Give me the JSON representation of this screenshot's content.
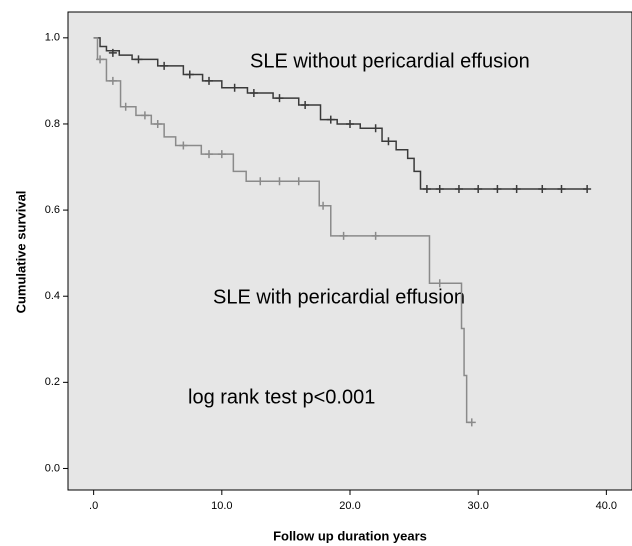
{
  "chart_data": {
    "type": "step",
    "x_label": "Follow up duration years",
    "y_label": "Cumulative survival",
    "annotations": [
      "SLE without pericardial effusion",
      "SLE with pericardial effusion",
      "log rank test p<0.001"
    ],
    "xlim": [
      -2,
      42
    ],
    "ylim": [
      -0.05,
      1.06
    ],
    "xticks": [
      {
        "value": 0,
        "label": ".0"
      },
      {
        "value": 10,
        "label": "10.0"
      },
      {
        "value": 20,
        "label": "20.0"
      },
      {
        "value": 30,
        "label": "30.0"
      },
      {
        "value": 40,
        "label": "40.0"
      }
    ],
    "yticks": [
      {
        "value": 0,
        "label": "0.0"
      },
      0.2,
      0.4,
      0.6,
      0.8,
      {
        "value": 1,
        "label": "1.0"
      }
    ],
    "series": [
      {
        "color": "#3a3a3a",
        "x": [
          0,
          0.5,
          1,
          2,
          3,
          5,
          7,
          8.5,
          10,
          12,
          14,
          16,
          17.7,
          19,
          20.8,
          22.5,
          23.6,
          24.5,
          25,
          25.5,
          38.5
        ],
        "values": [
          1,
          0.98,
          0.97,
          0.96,
          0.95,
          0.935,
          0.915,
          0.9,
          0.884,
          0.872,
          0.86,
          0.844,
          0.81,
          0.8,
          0.79,
          0.76,
          0.74,
          0.72,
          0.69,
          0.649,
          0.649
        ],
        "censored_x": [
          1.5,
          3.5,
          5.5,
          7.5,
          9,
          11,
          12.5,
          14.5,
          16.5,
          18.5,
          20,
          22,
          23,
          26,
          27,
          28.5,
          30,
          31.5,
          33,
          35,
          36.5,
          38.5
        ],
        "censored_values": [
          0.965,
          0.95,
          0.935,
          0.915,
          0.9,
          0.884,
          0.872,
          0.86,
          0.844,
          0.81,
          0.8,
          0.79,
          0.76,
          0.649,
          0.649,
          0.649,
          0.649,
          0.649,
          0.649,
          0.649,
          0.649,
          0.649
        ]
      },
      {
        "color": "#8a8a8a",
        "x": [
          0,
          0.3,
          1,
          2.1,
          3.3,
          4.5,
          5.5,
          6.4,
          8.4,
          10.9,
          11.9,
          17.6,
          18.5,
          26.2,
          28.7,
          28.9,
          29.1,
          29.5
        ],
        "values": [
          1,
          0.95,
          0.9,
          0.84,
          0.82,
          0.8,
          0.77,
          0.75,
          0.73,
          0.69,
          0.667,
          0.61,
          0.54,
          0.43,
          0.325,
          0.216,
          0.107,
          0.107
        ],
        "censored_x": [
          0.5,
          1.5,
          2.5,
          4,
          5,
          7,
          9,
          10,
          13,
          14.5,
          16,
          17.9,
          19.5,
          22,
          27,
          29.5
        ],
        "censored_values": [
          0.95,
          0.9,
          0.84,
          0.82,
          0.8,
          0.75,
          0.73,
          0.73,
          0.667,
          0.667,
          0.667,
          0.61,
          0.54,
          0.54,
          0.43,
          0.107
        ]
      }
    ]
  }
}
